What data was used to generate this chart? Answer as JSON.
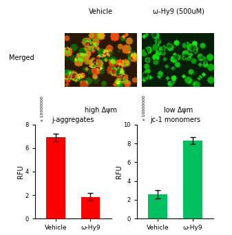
{
  "title_vehicle": "Vehicle",
  "title_hy9": "ω-Hy9 (500uM)",
  "merged_label": "Merged",
  "high_label": "high Δψm",
  "low_label": "low Δψm",
  "chart1_title": "j-aggregates",
  "chart2_title": "jc-1 monomers",
  "ylabel": "RFU",
  "xscale_label": "x 10000000",
  "categories": [
    "Vehicle",
    "ω-Hy9"
  ],
  "bar1_values": [
    6.9,
    1.85
  ],
  "bar1_errors": [
    0.35,
    0.3
  ],
  "bar1_color": "#ff0000",
  "bar1_ylim": [
    0,
    8
  ],
  "bar1_yticks": [
    0,
    2,
    4,
    6,
    8
  ],
  "bar2_values": [
    2.55,
    8.3
  ],
  "bar2_errors": [
    0.45,
    0.35
  ],
  "bar2_color": "#00c060",
  "bar2_ylim": [
    0,
    10
  ],
  "bar2_yticks": [
    0,
    2,
    4,
    6,
    8,
    10
  ]
}
